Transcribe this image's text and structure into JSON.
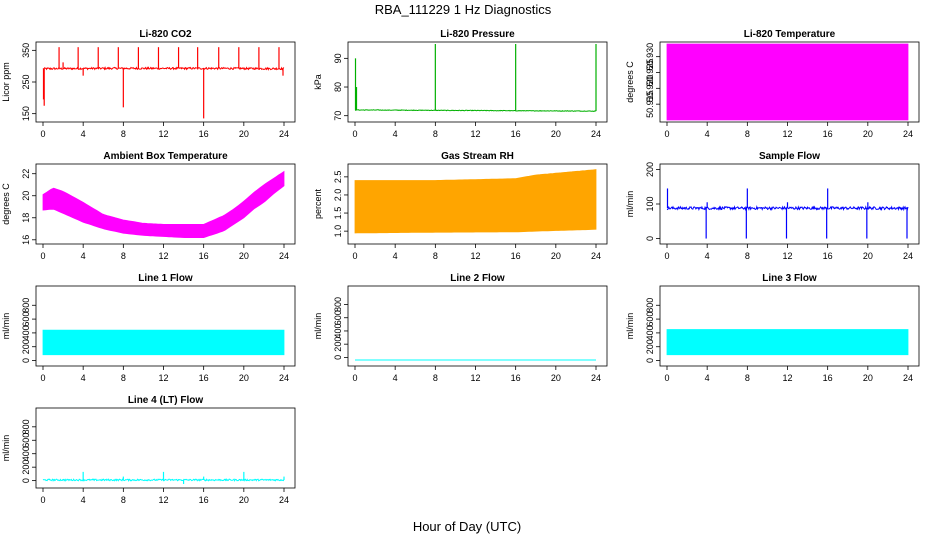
{
  "figure": {
    "title": "RBA_111229  1 Hz Diagnostics",
    "xlabel": "Hour of Day (UTC)"
  },
  "chart_data": [
    {
      "type": "line",
      "title": "Li-820 CO2",
      "ylabel": "Licor ppm",
      "color": "#ff0000",
      "xlim": [
        0,
        24
      ],
      "xticks": [
        "0",
        "4",
        "8",
        "12",
        "16",
        "20",
        "24"
      ],
      "ylim": [
        130,
        370
      ],
      "yticks": [
        150,
        250,
        350
      ],
      "baseline": {
        "x": [
          0,
          6,
          12,
          18,
          24
        ],
        "y": [
          292,
          293,
          293,
          293,
          292
        ]
      },
      "noise": 3,
      "spikes": [
        {
          "x": 0.05,
          "y": 195
        },
        {
          "x": 0.12,
          "y": 175
        },
        {
          "x": 1.6,
          "y": 360
        },
        {
          "x": 2.0,
          "y": 312
        },
        {
          "x": 3.5,
          "y": 360
        },
        {
          "x": 4.0,
          "y": 270
        },
        {
          "x": 5.5,
          "y": 360
        },
        {
          "x": 7.5,
          "y": 360
        },
        {
          "x": 8.0,
          "y": 170
        },
        {
          "x": 9.5,
          "y": 360
        },
        {
          "x": 11.5,
          "y": 360
        },
        {
          "x": 13.5,
          "y": 360
        },
        {
          "x": 15.4,
          "y": 360
        },
        {
          "x": 16.0,
          "y": 135
        },
        {
          "x": 17.5,
          "y": 360
        },
        {
          "x": 19.5,
          "y": 360
        },
        {
          "x": 21.5,
          "y": 360
        },
        {
          "x": 23.5,
          "y": 360
        },
        {
          "x": 23.9,
          "y": 270
        }
      ]
    },
    {
      "type": "line",
      "title": "Li-820 Pressure",
      "ylabel": "kPa",
      "color": "#00b000",
      "xlim": [
        0,
        24
      ],
      "xticks": [
        "0",
        "4",
        "8",
        "12",
        "16",
        "20",
        "24"
      ],
      "ylim": [
        68.5,
        95
      ],
      "yticks": [
        70,
        80,
        90
      ],
      "baseline": {
        "x": [
          0,
          0.3,
          12,
          24
        ],
        "y": [
          72,
          72,
          71.8,
          71.6
        ]
      },
      "noise": 0.1,
      "spikes": [
        {
          "x": 0.05,
          "y": 90
        },
        {
          "x": 0.15,
          "y": 80
        },
        {
          "x": 8.0,
          "y": 95
        },
        {
          "x": 16.0,
          "y": 95
        },
        {
          "x": 24.0,
          "y": 95
        }
      ]
    },
    {
      "type": "band",
      "title": "Li-820 Temperature",
      "ylabel": "degrees C",
      "color": "#ff00ff",
      "xlim": [
        0,
        24
      ],
      "xticks": [
        "0",
        "4",
        "8",
        "12",
        "16",
        "20",
        "24"
      ],
      "ylim": [
        50.91,
        50.934
      ],
      "yticks": [
        50.915,
        50.92,
        50.925,
        50.93
      ],
      "band": {
        "x": [
          0,
          24
        ],
        "lo": [
          50.91,
          50.91
        ],
        "hi": [
          50.934,
          50.934
        ]
      }
    },
    {
      "type": "band",
      "title": "Ambient Box Temperature",
      "ylabel": "degrees C",
      "color": "#ff00ff",
      "xlim": [
        0,
        24
      ],
      "xticks": [
        "0",
        "4",
        "8",
        "12",
        "16",
        "20",
        "24"
      ],
      "ylim": [
        15.8,
        22.7
      ],
      "yticks": [
        16,
        18,
        20,
        22
      ],
      "band": {
        "x": [
          0,
          1,
          2,
          4,
          6,
          8,
          10,
          12,
          14,
          16,
          18,
          19,
          20,
          21,
          22,
          23,
          24
        ],
        "lo": [
          18.7,
          18.8,
          18.4,
          17.6,
          17.0,
          16.6,
          16.4,
          16.3,
          16.2,
          16.2,
          16.8,
          17.4,
          18.0,
          18.8,
          19.4,
          20.2,
          20.9
        ],
        "hi": [
          20.1,
          20.7,
          20.4,
          19.4,
          18.3,
          17.8,
          17.5,
          17.4,
          17.4,
          17.4,
          18.2,
          18.8,
          19.5,
          20.3,
          21.0,
          21.6,
          22.2
        ]
      }
    },
    {
      "type": "band",
      "title": "Gas Stream RH",
      "ylabel": "percent",
      "color": "#ffa500",
      "xlim": [
        0,
        24
      ],
      "xticks": [
        "0",
        "4",
        "8",
        "12",
        "16",
        "20",
        "24"
      ],
      "ylim": [
        0.7,
        2.8
      ],
      "yticks": [
        1.0,
        1.5,
        2.0,
        2.5
      ],
      "band": {
        "x": [
          0,
          8,
          16,
          18,
          24
        ],
        "lo": [
          0.95,
          0.97,
          0.98,
          1.0,
          1.05
        ],
        "hi": [
          2.4,
          2.4,
          2.45,
          2.55,
          2.7
        ]
      }
    },
    {
      "type": "line",
      "title": "Sample Flow",
      "ylabel": "ml/min",
      "color": "#0000ff",
      "xlim": [
        0,
        24
      ],
      "xticks": [
        "0",
        "4",
        "8",
        "12",
        "16",
        "20",
        "24"
      ],
      "ylim": [
        -10,
        210
      ],
      "yticks": [
        0,
        100,
        200
      ],
      "baseline": {
        "x": [
          0,
          24
        ],
        "y": [
          88,
          88
        ]
      },
      "noise": 4,
      "spikes": [
        {
          "x": 0.05,
          "y": 145
        },
        {
          "x": 3.9,
          "y": 0
        },
        {
          "x": 4.0,
          "y": 105
        },
        {
          "x": 7.9,
          "y": 0
        },
        {
          "x": 8.0,
          "y": 145
        },
        {
          "x": 11.9,
          "y": 0
        },
        {
          "x": 12.0,
          "y": 105
        },
        {
          "x": 15.9,
          "y": 0
        },
        {
          "x": 16.0,
          "y": 145
        },
        {
          "x": 19.9,
          "y": 0
        },
        {
          "x": 20.0,
          "y": 105
        },
        {
          "x": 23.9,
          "y": 0
        }
      ]
    },
    {
      "type": "band",
      "title": "Line 1 Flow",
      "ylabel": "ml/min",
      "color": "#00ffff",
      "xlim": [
        0,
        24
      ],
      "xticks": [
        "0",
        "4",
        "8",
        "12",
        "16",
        "20",
        "24"
      ],
      "ylim": [
        -50,
        1050
      ],
      "yticks": [
        0,
        200,
        400,
        600,
        800
      ],
      "band": {
        "x": [
          0,
          24
        ],
        "lo": [
          85,
          85
        ],
        "hi": [
          440,
          440
        ]
      }
    },
    {
      "type": "line",
      "title": "Line 2 Flow",
      "ylabel": "ml/min",
      "color": "#00ffff",
      "xlim": [
        0,
        24
      ],
      "xticks": [
        "0",
        "4",
        "8",
        "12",
        "16",
        "20",
        "24"
      ],
      "ylim": [
        -100,
        1050
      ],
      "yticks": [
        0,
        200,
        400,
        600,
        800
      ],
      "baseline": {
        "x": [
          0,
          24
        ],
        "y": [
          -40,
          -40
        ]
      },
      "noise": 0,
      "spikes": []
    },
    {
      "type": "band",
      "title": "Line 3 Flow",
      "ylabel": "ml/min",
      "color": "#00ffff",
      "xlim": [
        0,
        24
      ],
      "xticks": [
        "0",
        "4",
        "8",
        "12",
        "16",
        "20",
        "24"
      ],
      "ylim": [
        -50,
        1050
      ],
      "yticks": [
        0,
        200,
        400,
        600,
        800
      ],
      "band": {
        "x": [
          0,
          24
        ],
        "lo": [
          85,
          85
        ],
        "hi": [
          450,
          450
        ]
      }
    },
    {
      "type": "line",
      "title": "Line 4 (LT) Flow",
      "ylabel": "ml/min",
      "color": "#00ffff",
      "xlim": [
        0,
        24
      ],
      "xticks": [
        "0",
        "4",
        "8",
        "12",
        "16",
        "20",
        "24"
      ],
      "ylim": [
        -80,
        1050
      ],
      "yticks": [
        0,
        200,
        400,
        600,
        800
      ],
      "baseline": {
        "x": [
          0,
          24
        ],
        "y": [
          10,
          10
        ]
      },
      "noise": 12,
      "spikes": [
        {
          "x": 4.0,
          "y": 130
        },
        {
          "x": 8.0,
          "y": 60
        },
        {
          "x": 12.0,
          "y": 130
        },
        {
          "x": 14.0,
          "y": -50
        },
        {
          "x": 16.0,
          "y": 60
        },
        {
          "x": 20.0,
          "y": 130
        },
        {
          "x": 24.0,
          "y": 60
        }
      ]
    }
  ]
}
